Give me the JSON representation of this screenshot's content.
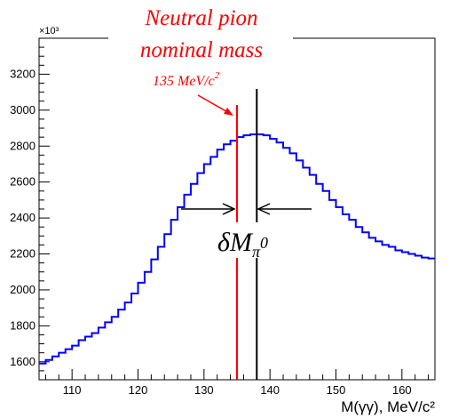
{
  "chart_data": {
    "type": "line",
    "style": "step-histogram",
    "xlabel": "M(γγ), MeV/c²",
    "ylabel": "",
    "y_multiplier": "×10³",
    "xlim": [
      105,
      165
    ],
    "ylim": [
      1500,
      3400
    ],
    "x_ticks": [
      110,
      120,
      130,
      140,
      150,
      160
    ],
    "y_ticks": [
      1600,
      1800,
      2000,
      2200,
      2400,
      2600,
      2800,
      3000,
      3200
    ],
    "bin_width": 1,
    "series": [
      {
        "color": "#0000ff",
        "x": [
          105,
          106,
          107,
          108,
          109,
          110,
          111,
          112,
          113,
          114,
          115,
          116,
          117,
          118,
          119,
          120,
          121,
          122,
          123,
          124,
          125,
          126,
          127,
          128,
          129,
          130,
          131,
          132,
          133,
          134,
          135,
          136,
          137,
          138,
          139,
          140,
          141,
          142,
          143,
          144,
          145,
          146,
          147,
          148,
          149,
          150,
          151,
          152,
          153,
          154,
          155,
          156,
          157,
          158,
          159,
          160,
          161,
          162,
          163,
          164
        ],
        "values": [
          1590,
          1610,
          1630,
          1650,
          1670,
          1690,
          1720,
          1740,
          1760,
          1790,
          1820,
          1850,
          1890,
          1930,
          1980,
          2040,
          2100,
          2170,
          2240,
          2310,
          2390,
          2460,
          2530,
          2590,
          2650,
          2700,
          2740,
          2780,
          2810,
          2830,
          2850,
          2860,
          2865,
          2865,
          2860,
          2840,
          2820,
          2790,
          2760,
          2720,
          2680,
          2640,
          2590,
          2550,
          2500,
          2460,
          2420,
          2390,
          2350,
          2320,
          2290,
          2270,
          2250,
          2240,
          2220,
          2210,
          2200,
          2190,
          2180,
          2175
        ]
      }
    ],
    "vertical_lines": [
      {
        "x": 135,
        "color": "#ff0000"
      },
      {
        "x": 138,
        "color": "#000000"
      }
    ],
    "annotations": {
      "title_line1": "Neutral pion",
      "title_line2": "nominal mass",
      "mass_value": "135 MeV/c",
      "mass_value_sup": "2",
      "delta_symbol": "δM",
      "delta_sub": "π",
      "delta_sub_sup": "0",
      "annotation_color": "#ff0000"
    }
  }
}
